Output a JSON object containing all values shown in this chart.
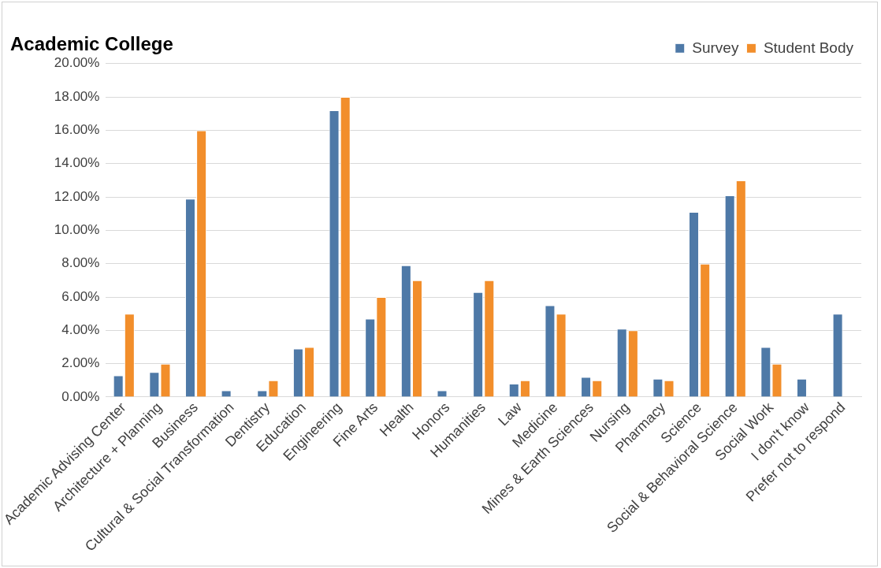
{
  "chart_data": {
    "type": "bar",
    "title": "Academic College",
    "categories": [
      "Academic Advising Center",
      "Architecture + Planning",
      "Business",
      "Cultural & Social Transformation",
      "Dentistry",
      "Education",
      "Engineering",
      "Fine Arts",
      "Health",
      "Honors",
      "Humanities",
      "Law",
      "Medicine",
      "Mines & Earth Sciences",
      "Nursing",
      "Pharmacy",
      "Science",
      "Social & Behavioral Science",
      "Social Work",
      "I don't know",
      "Prefer not to respond"
    ],
    "series": [
      {
        "name": "Survey",
        "color": "#4e79a7",
        "values": [
          1.3,
          1.5,
          11.9,
          0.4,
          0.4,
          2.9,
          17.2,
          4.7,
          7.9,
          0.4,
          6.3,
          0.8,
          5.5,
          1.2,
          4.1,
          1.1,
          11.1,
          12.1,
          3.0,
          1.1,
          5.0
        ]
      },
      {
        "name": "Student Body",
        "color": "#f28e2b",
        "values": [
          5,
          2,
          16,
          null,
          1,
          3,
          18,
          6,
          7,
          null,
          7,
          1,
          5,
          1,
          4,
          1,
          8,
          13,
          2,
          null,
          null
        ]
      }
    ],
    "ylim": [
      0,
      20
    ],
    "yticks": [
      {
        "value": 0,
        "label": "0.00%"
      },
      {
        "value": 2,
        "label": "2.00%"
      },
      {
        "value": 4,
        "label": "4.00%"
      },
      {
        "value": 6,
        "label": "6.00%"
      },
      {
        "value": 8,
        "label": "8.00%"
      },
      {
        "value": 10,
        "label": "10.00%"
      },
      {
        "value": 12,
        "label": "12.00%"
      },
      {
        "value": 14,
        "label": "14.00%"
      },
      {
        "value": 16,
        "label": "16.00%"
      },
      {
        "value": 18,
        "label": "18.00%"
      },
      {
        "value": 20,
        "label": "20.00%"
      }
    ],
    "grid": "y",
    "legend": "top right"
  }
}
